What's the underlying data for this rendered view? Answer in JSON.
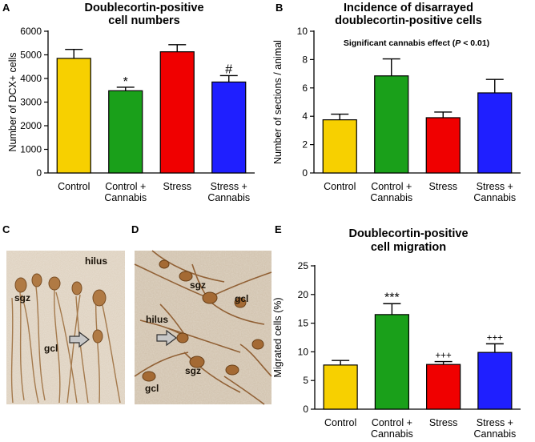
{
  "panel_letters": [
    "A",
    "B",
    "C",
    "D",
    "E"
  ],
  "colors": {
    "control": "#f7d000",
    "control_cannabis": "#1aa01a",
    "stress": "#f00000",
    "stress_cannabis": "#1f1fff",
    "tissue_light": "#e6ddd0",
    "stain": "#8a5a2a"
  },
  "chart_data": [
    {
      "panel": "A",
      "type": "bar",
      "title": [
        "Doublecortin-positive",
        "cell numbers"
      ],
      "ylabel": "Number of DCX+ cells",
      "xlabel": "",
      "ylim": [
        0,
        6000
      ],
      "yticks": [
        0,
        1000,
        2000,
        3000,
        4000,
        5000,
        6000
      ],
      "categories": [
        [
          "Control"
        ],
        [
          "Control +",
          "Cannabis"
        ],
        [
          "Stress"
        ],
        [
          "Stress +",
          "Cannabis"
        ]
      ],
      "values": [
        4850,
        3480,
        5130,
        3850
      ],
      "errors": [
        380,
        150,
        300,
        270
      ],
      "annotations": [
        "",
        "*",
        "",
        "#"
      ],
      "note": ""
    },
    {
      "panel": "B",
      "type": "bar",
      "title": [
        "Incidence of disarrayed",
        "doublecortin-positive cells"
      ],
      "ylabel": "Number of sections / animal",
      "xlabel": "",
      "ylim": [
        0,
        10
      ],
      "yticks": [
        0,
        2,
        4,
        6,
        8,
        10
      ],
      "categories": [
        [
          "Control"
        ],
        [
          "Control +",
          "Cannabis"
        ],
        [
          "Stress"
        ],
        [
          "Stress +",
          "Cannabis"
        ]
      ],
      "values": [
        3.75,
        6.85,
        3.9,
        5.65
      ],
      "errors": [
        0.4,
        1.2,
        0.4,
        0.95
      ],
      "annotations": [
        "",
        "",
        "",
        ""
      ],
      "note": "Significant cannabis effect (P < 0.01)"
    },
    {
      "panel": "E",
      "type": "bar",
      "title": [
        "Doublecortin-positive",
        "cell migration"
      ],
      "ylabel": "Migrated cells (%)",
      "xlabel": "",
      "ylim": [
        0,
        25
      ],
      "yticks": [
        0,
        5,
        10,
        15,
        20,
        25
      ],
      "categories": [
        [
          "Control"
        ],
        [
          "Control +",
          "Cannabis"
        ],
        [
          "Stress"
        ],
        [
          "Stress +",
          "Cannabis"
        ]
      ],
      "values": [
        7.7,
        16.5,
        7.8,
        9.9
      ],
      "errors": [
        0.8,
        1.9,
        0.5,
        1.5
      ],
      "annotations": [
        "",
        "***",
        "+++",
        "+++"
      ],
      "note": ""
    }
  ],
  "micrographs": {
    "C": {
      "labels": [
        "hilus",
        "sgz",
        "gcl"
      ]
    },
    "D": {
      "labels": [
        "sgz",
        "gcl",
        "hilus",
        "sgz",
        "gcl"
      ]
    }
  }
}
